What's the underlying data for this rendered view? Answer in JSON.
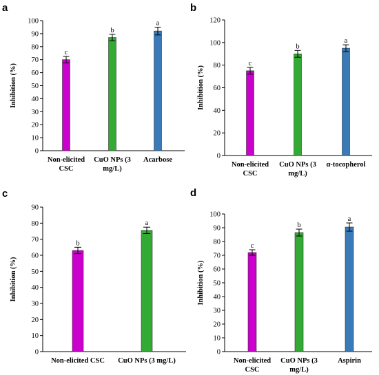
{
  "chart_data": [
    {
      "panel": "a",
      "type": "bar",
      "ylabel": "Inhibition (%)",
      "ylim": [
        0,
        100
      ],
      "yticks": [
        0,
        10,
        20,
        30,
        40,
        50,
        60,
        70,
        80,
        90,
        100
      ],
      "categories": [
        [
          "Non-elicited",
          "CSC"
        ],
        [
          "CuO NPs (3",
          "mg/L)"
        ],
        [
          "Acarbose"
        ]
      ],
      "values": [
        70,
        87,
        92
      ],
      "errors": [
        2.5,
        2.5,
        3
      ],
      "letters": [
        "c",
        "b",
        "a"
      ],
      "colors": [
        "#cc00cc",
        "#33aa33",
        "#3a7ab8"
      ]
    },
    {
      "panel": "b",
      "type": "bar",
      "ylabel": "Inhibition (%)",
      "ylim": [
        0,
        120
      ],
      "yticks": [
        0,
        20,
        40,
        60,
        80,
        100,
        120
      ],
      "categories": [
        [
          "Non-elicited",
          "CSC"
        ],
        [
          "CuO NPs (3",
          "mg/L)"
        ],
        [
          "α-tocopherol"
        ]
      ],
      "values": [
        75,
        90,
        95
      ],
      "errors": [
        3,
        3,
        3
      ],
      "letters": [
        "c",
        "b",
        "a"
      ],
      "colors": [
        "#cc00cc",
        "#33aa33",
        "#3a7ab8"
      ]
    },
    {
      "panel": "c",
      "type": "bar",
      "ylabel": "Inhibition (%)",
      "ylim": [
        0,
        90
      ],
      "yticks": [
        0,
        10,
        20,
        30,
        40,
        50,
        60,
        70,
        80,
        90
      ],
      "categories": [
        [
          "Non-elicited CSC"
        ],
        [
          "CuO NPs (3 mg/L)"
        ]
      ],
      "values": [
        63,
        75.5
      ],
      "errors": [
        2,
        2
      ],
      "letters": [
        "b",
        "a"
      ],
      "colors": [
        "#cc00cc",
        "#33aa33"
      ]
    },
    {
      "panel": "d",
      "type": "bar",
      "ylabel": "Inhibition (%)",
      "ylim": [
        0,
        100
      ],
      "yticks": [
        0,
        10,
        20,
        30,
        40,
        50,
        60,
        70,
        80,
        90,
        100
      ],
      "categories": [
        [
          "Non-elicited",
          "CSC"
        ],
        [
          "CuO NPs (3",
          "mg/L)"
        ],
        [
          "Aspirin"
        ]
      ],
      "values": [
        72,
        86.5,
        90.5
      ],
      "errors": [
        2,
        2.5,
        3
      ],
      "letters": [
        "c",
        "b",
        "a"
      ],
      "colors": [
        "#cc00cc",
        "#33aa33",
        "#3a7ab8"
      ]
    }
  ]
}
